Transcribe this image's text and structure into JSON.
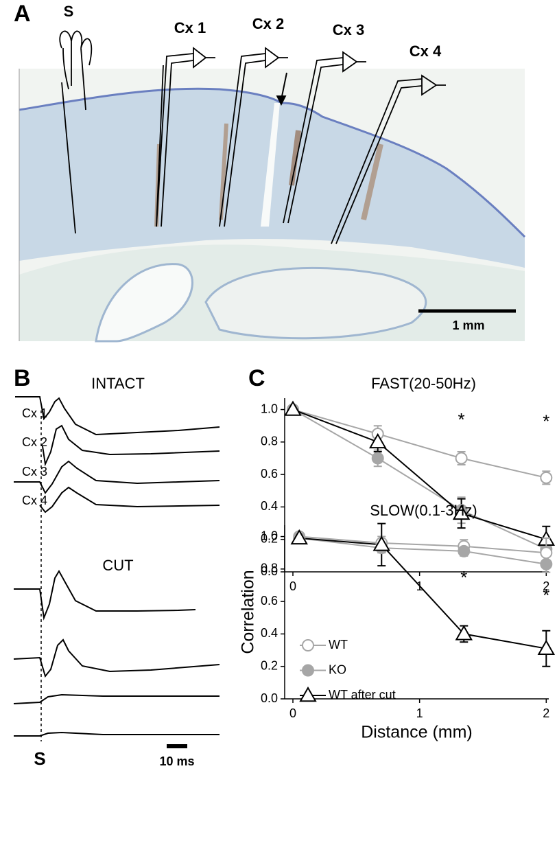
{
  "panel_a": {
    "label": "A",
    "stim_label": "S",
    "electrodes": [
      "Cx 1",
      "Cx 2",
      "Cx 3",
      "Cx 4"
    ],
    "scale_bar": "1 mm"
  },
  "panel_b": {
    "label": "B",
    "intact_title": "INTACT",
    "cut_title": "CUT",
    "trace_labels": [
      "Cx 1",
      "Cx 2",
      "Cx 3",
      "Cx 4"
    ],
    "stim_label": "S",
    "time_scale": "10 ms"
  },
  "panel_c": {
    "label": "C"
  },
  "chart_data": [
    {
      "type": "line",
      "title": "FAST(20-50Hz)",
      "xlim": [
        -0.065,
        2.02
      ],
      "ylim": [
        0,
        1.07
      ],
      "xticks": [
        0,
        1,
        2
      ],
      "yticks": [
        {
          "value": 0,
          "label": "0.0"
        },
        0.2,
        0.4,
        0.6,
        0.8,
        {
          "value": 1,
          "label": "1.0"
        }
      ],
      "series": [
        {
          "name": "WT",
          "color": "#a6a6a6",
          "marker": "open-circle",
          "x": [
            0,
            0.67,
            1.33,
            2
          ],
          "values": [
            1.0,
            0.85,
            0.7,
            0.58
          ],
          "errors": [
            0.01,
            0.05,
            0.04,
            0.04
          ]
        },
        {
          "name": "KO",
          "color": "#a6a6a6",
          "marker": "filled-circle",
          "x": [
            0,
            0.67,
            1.33,
            2
          ],
          "values": [
            1.0,
            0.7,
            0.38,
            0.14
          ],
          "errors": [
            0.01,
            0.05,
            0.08,
            0.04
          ]
        },
        {
          "name": "WT after cut",
          "color": "#000000",
          "marker": "open-triangle",
          "x": [
            0,
            0.67,
            1.33,
            2
          ],
          "values": [
            1.0,
            0.8,
            0.36,
            0.2
          ],
          "errors": [
            0.01,
            0.06,
            0.09,
            0.08
          ]
        }
      ],
      "annotations": [
        {
          "text": "*",
          "x": 1.33,
          "y": 0.93
        },
        {
          "text": "*",
          "x": 2,
          "y": 0.92
        }
      ]
    },
    {
      "type": "line",
      "title": "SLOW(0.1-3Hz)",
      "xlabel": "Distance (mm)",
      "ylabel": "Correlation",
      "xlim": [
        -0.065,
        2.02
      ],
      "ylim": [
        0,
        1.07
      ],
      "xticks": [
        0,
        1,
        2
      ],
      "yticks": [
        {
          "value": 0,
          "label": "0.0"
        },
        0.2,
        0.4,
        0.6,
        0.8,
        {
          "value": 1,
          "label": "1.0"
        }
      ],
      "legend": "lower left",
      "series": [
        {
          "name": "WT",
          "color": "#a6a6a6",
          "marker": "open-circle",
          "x": [
            0.05,
            0.7,
            1.35,
            2
          ],
          "values": [
            1.0,
            0.96,
            0.94,
            0.9
          ],
          "errors": [
            0.01,
            0.04,
            0.04,
            0.09
          ]
        },
        {
          "name": "KO",
          "color": "#a6a6a6",
          "marker": "filled-circle",
          "x": [
            0.05,
            0.7,
            1.35,
            2
          ],
          "values": [
            0.99,
            0.93,
            0.91,
            0.83
          ],
          "errors": [
            0.01,
            0.03,
            0.03,
            0.05
          ]
        },
        {
          "name": "WT after cut",
          "color": "#000000",
          "marker": "open-triangle",
          "x": [
            0.05,
            0.7,
            1.35,
            2
          ],
          "values": [
            0.99,
            0.95,
            0.4,
            0.31
          ],
          "errors": [
            0.01,
            0.13,
            0.05,
            0.11
          ]
        }
      ],
      "annotations": [
        {
          "text": "*",
          "x": 1.35,
          "y": 0.74
        },
        {
          "text": "*",
          "x": 2,
          "y": 0.63
        }
      ]
    }
  ]
}
